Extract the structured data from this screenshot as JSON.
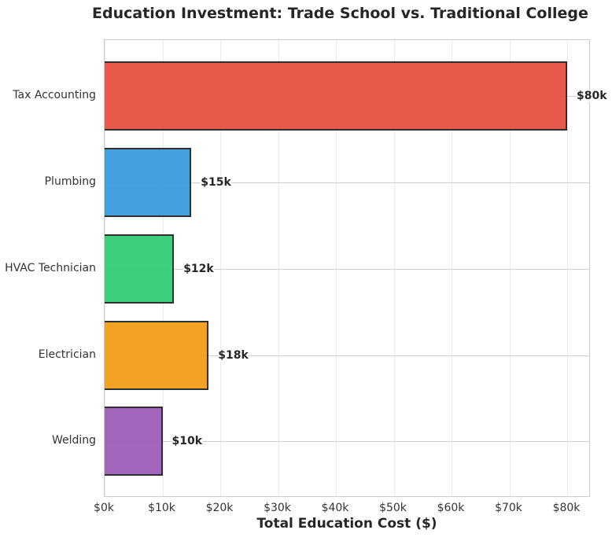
{
  "chart_data": {
    "type": "bar",
    "orientation": "horizontal",
    "title": "Education Investment: Trade School vs. Traditional College",
    "xlabel": "Total Education Cost ($)",
    "ylabel": "",
    "categories": [
      "Tax Accounting",
      "Plumbing",
      "HVAC Technician",
      "Electrician",
      "Welding"
    ],
    "values": [
      80000,
      15000,
      12000,
      18000,
      10000
    ],
    "value_labels": [
      "$80k",
      "$15k",
      "$12k",
      "$18k",
      "$10k"
    ],
    "colors": [
      "#e74c3c",
      "#3498db",
      "#2ecc71",
      "#f39c12",
      "#9b59b6"
    ],
    "xlim": [
      0,
      84000
    ],
    "xticks": [
      0,
      10000,
      20000,
      30000,
      40000,
      50000,
      60000,
      70000,
      80000
    ],
    "xtick_labels": [
      "$0k",
      "$10k",
      "$20k",
      "$30k",
      "$40k",
      "$50k",
      "$60k",
      "$70k",
      "$80k"
    ],
    "grid": true,
    "legend": null
  }
}
